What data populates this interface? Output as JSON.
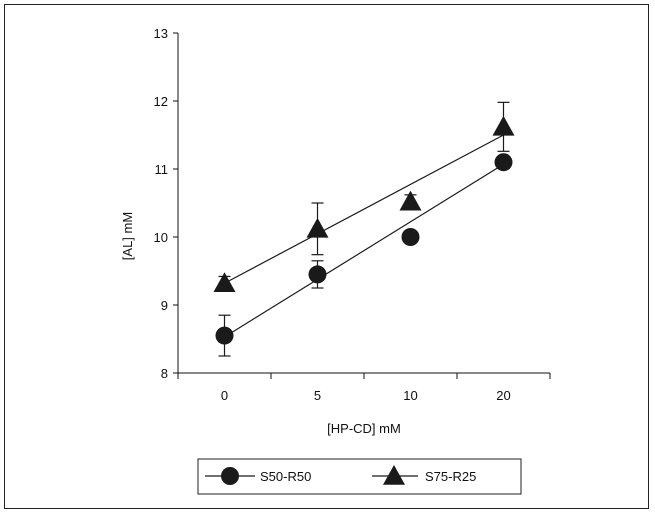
{
  "chart_data": {
    "type": "scatter",
    "categories": [
      "0",
      "5",
      "10",
      "20"
    ],
    "xlabel": "[HP-CD] mM",
    "ylabel": "[AL] mM",
    "ylim": [
      8,
      13
    ],
    "yticks": [
      8,
      9,
      10,
      11,
      12,
      13
    ],
    "grid": false,
    "legend_position": "bottom-center",
    "series": [
      {
        "name": "S50-R50",
        "marker": "circle",
        "values": [
          8.55,
          9.45,
          10.0,
          11.1
        ],
        "errors": [
          0.3,
          0.2,
          0.05,
          0.05
        ],
        "trend": [
          8.53,
          11.07
        ]
      },
      {
        "name": "S75-R25",
        "marker": "triangle",
        "values": [
          9.32,
          10.12,
          10.52,
          11.62
        ],
        "errors": [
          0.1,
          0.38,
          0.1,
          0.36
        ],
        "trend": [
          9.32,
          11.5
        ]
      }
    ],
    "colors": {
      "marker": "#1a1a1a",
      "line": "#1a1a1a"
    }
  }
}
